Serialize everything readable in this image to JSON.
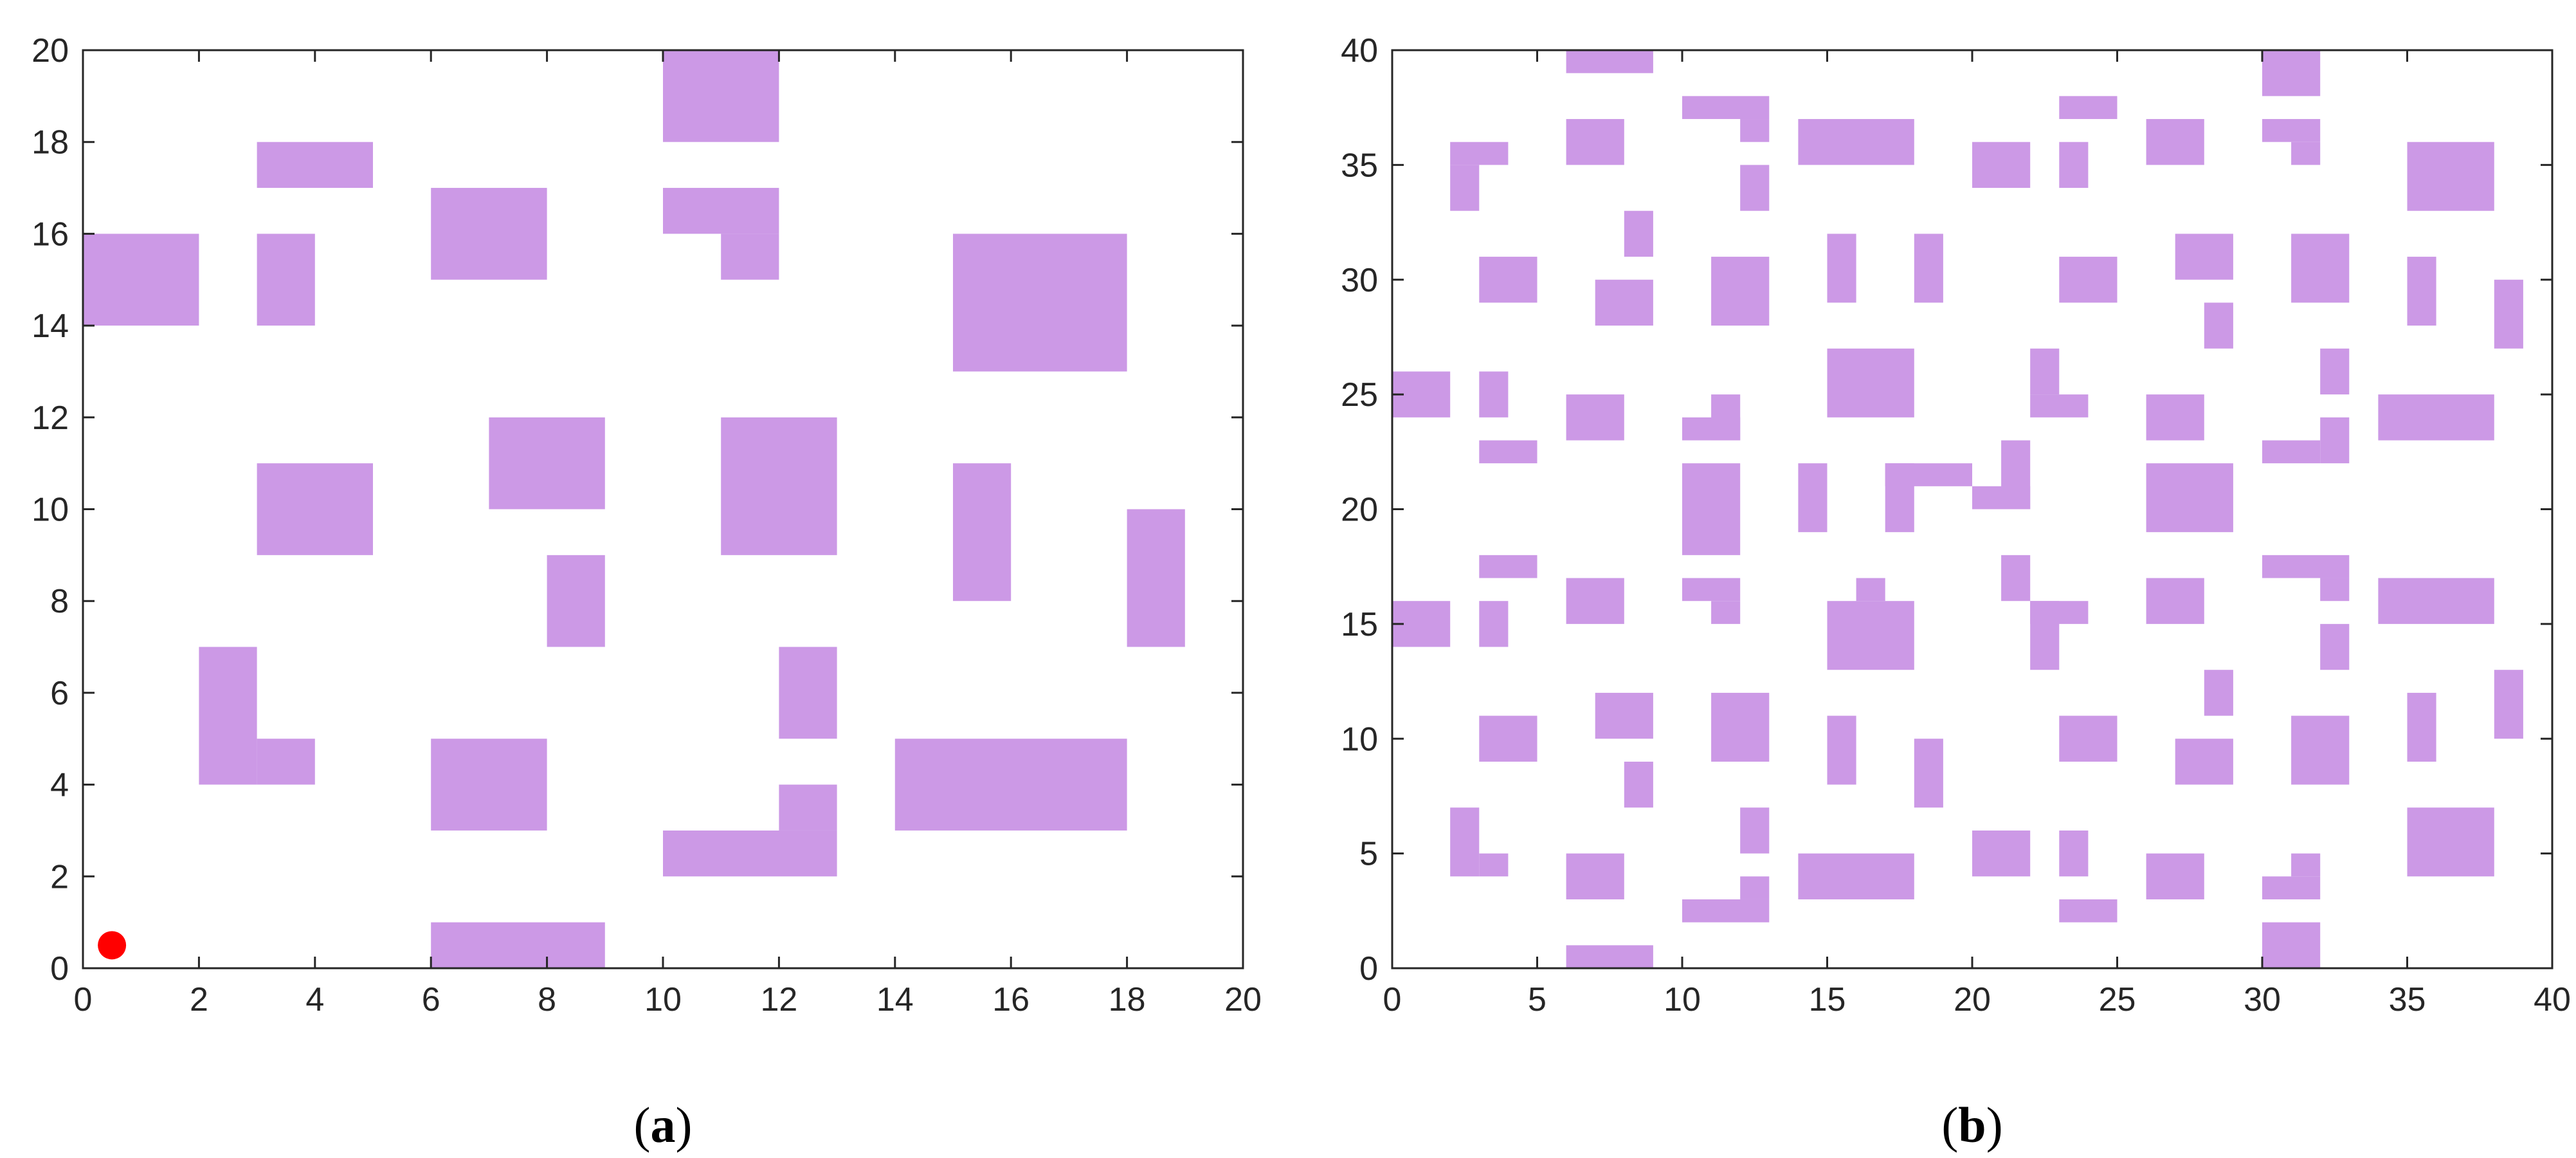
{
  "colors": {
    "obstacle": "#CC99E6",
    "start": "#FF0000",
    "axis": "#262626"
  },
  "panels": [
    {
      "id": "a",
      "caption": {
        "open": "(",
        "letter": "a",
        "close": ")"
      },
      "xlim": [
        0,
        20
      ],
      "ylim": [
        0,
        20
      ],
      "xticks": [
        0,
        2,
        4,
        6,
        8,
        10,
        12,
        14,
        16,
        18,
        20
      ],
      "yticks": [
        0,
        2,
        4,
        6,
        8,
        10,
        12,
        14,
        16,
        18,
        20
      ],
      "start": {
        "x": 0.5,
        "y": 0.5
      },
      "cells": [
        [
          10,
          18,
          12,
          20
        ],
        [
          3,
          17,
          5,
          18
        ],
        [
          0,
          14,
          2,
          16
        ],
        [
          3,
          14,
          4,
          16
        ],
        [
          6,
          15,
          8,
          17
        ],
        [
          10,
          16,
          12,
          17
        ],
        [
          11,
          15,
          12,
          16
        ],
        [
          15,
          13,
          18,
          16
        ],
        [
          7,
          10,
          9,
          12
        ],
        [
          11,
          9,
          13,
          12
        ],
        [
          3,
          9,
          5,
          11
        ],
        [
          15,
          8,
          16,
          11
        ],
        [
          18,
          7,
          19,
          10
        ],
        [
          8,
          7,
          9,
          9
        ],
        [
          2,
          4,
          3,
          7
        ],
        [
          3,
          4,
          4,
          5
        ],
        [
          12,
          5,
          13,
          7
        ],
        [
          6,
          3,
          8,
          5
        ],
        [
          14,
          3,
          18,
          5
        ],
        [
          10,
          2,
          13,
          3
        ],
        [
          12,
          3,
          13,
          4
        ],
        [
          6,
          0,
          9,
          1
        ]
      ]
    },
    {
      "id": "b",
      "caption": {
        "open": "(",
        "letter": "b",
        "close": ")"
      },
      "xlim": [
        0,
        40
      ],
      "ylim": [
        0,
        40
      ],
      "xticks": [
        0,
        5,
        10,
        15,
        20,
        25,
        30,
        35,
        40
      ],
      "yticks": [
        0,
        5,
        10,
        15,
        20,
        25,
        30,
        35,
        40
      ],
      "cells": [
        [
          6,
          39,
          9,
          40
        ],
        [
          30,
          38,
          32,
          40
        ],
        [
          10,
          37,
          13,
          38
        ],
        [
          12,
          36,
          13,
          37
        ],
        [
          23,
          37,
          25,
          38
        ],
        [
          30,
          36,
          32,
          37
        ],
        [
          31,
          35,
          32,
          36
        ],
        [
          2,
          35,
          4,
          36
        ],
        [
          2,
          33,
          3,
          35
        ],
        [
          6,
          35,
          8,
          37
        ],
        [
          14,
          35,
          18,
          37
        ],
        [
          20,
          34,
          22,
          36
        ],
        [
          23,
          34,
          24,
          36
        ],
        [
          26,
          35,
          28,
          37
        ],
        [
          35,
          33,
          38,
          36
        ],
        [
          12,
          33,
          13,
          35
        ],
        [
          8,
          31,
          9,
          33
        ],
        [
          18,
          29,
          19,
          32
        ],
        [
          15,
          29,
          16,
          32
        ],
        [
          11,
          28,
          13,
          31
        ],
        [
          3,
          29,
          5,
          31
        ],
        [
          7,
          28,
          9,
          30
        ],
        [
          23,
          29,
          25,
          31
        ],
        [
          27,
          30,
          29,
          32
        ],
        [
          31,
          29,
          33,
          32
        ],
        [
          35,
          28,
          36,
          31
        ],
        [
          38,
          27,
          39,
          30
        ],
        [
          28,
          27,
          29,
          29
        ],
        [
          0,
          24,
          2,
          26
        ],
        [
          3,
          24,
          4,
          26
        ],
        [
          6,
          23,
          8,
          25
        ],
        [
          11,
          23,
          12,
          25
        ],
        [
          10,
          23,
          12,
          24
        ],
        [
          15,
          24,
          18,
          27
        ],
        [
          22,
          25,
          23,
          27
        ],
        [
          22,
          24,
          24,
          25
        ],
        [
          26,
          23,
          28,
          25
        ],
        [
          32,
          25,
          33,
          27
        ],
        [
          32,
          22,
          33,
          24
        ],
        [
          30,
          22,
          32,
          23
        ],
        [
          34,
          23,
          38,
          25
        ],
        [
          3,
          22,
          5,
          23
        ],
        [
          10,
          18,
          12,
          22
        ],
        [
          14,
          19,
          15,
          22
        ],
        [
          17,
          19,
          18,
          22
        ],
        [
          17,
          21,
          20,
          22
        ],
        [
          21,
          20,
          22,
          23
        ],
        [
          20,
          20,
          22,
          21
        ],
        [
          26,
          19,
          29,
          22
        ],
        [
          3,
          17,
          5,
          18
        ],
        [
          0,
          14,
          2,
          16
        ],
        [
          3,
          14,
          4,
          16
        ],
        [
          6,
          15,
          8,
          17
        ],
        [
          10,
          16,
          12,
          17
        ],
        [
          11,
          15,
          12,
          16
        ],
        [
          15,
          13,
          18,
          16
        ],
        [
          16,
          16,
          17,
          17
        ],
        [
          21,
          16,
          22,
          18
        ],
        [
          22,
          13,
          23,
          16
        ],
        [
          22,
          15,
          24,
          16
        ],
        [
          26,
          15,
          28,
          17
        ],
        [
          30,
          17,
          33,
          18
        ],
        [
          32,
          16,
          33,
          17
        ],
        [
          34,
          15,
          38,
          17
        ],
        [
          32,
          13,
          33,
          15
        ],
        [
          28,
          11,
          29,
          13
        ],
        [
          7,
          10,
          9,
          12
        ],
        [
          11,
          9,
          13,
          12
        ],
        [
          3,
          9,
          5,
          11
        ],
        [
          15,
          8,
          16,
          11
        ],
        [
          18,
          7,
          19,
          10
        ],
        [
          8,
          7,
          9,
          9
        ],
        [
          23,
          9,
          25,
          11
        ],
        [
          27,
          8,
          29,
          10
        ],
        [
          31,
          8,
          33,
          11
        ],
        [
          35,
          9,
          36,
          12
        ],
        [
          38,
          10,
          39,
          13
        ],
        [
          2,
          4,
          3,
          7
        ],
        [
          3,
          4,
          4,
          5
        ],
        [
          12,
          5,
          13,
          7
        ],
        [
          6,
          3,
          8,
          5
        ],
        [
          14,
          3,
          18,
          5
        ],
        [
          10,
          2,
          13,
          3
        ],
        [
          12,
          3,
          13,
          4
        ],
        [
          20,
          4,
          22,
          6
        ],
        [
          23,
          4,
          24,
          6
        ],
        [
          23,
          2,
          25,
          3
        ],
        [
          26,
          3,
          28,
          5
        ],
        [
          30,
          3,
          32,
          4
        ],
        [
          31,
          4,
          32,
          5
        ],
        [
          30,
          0,
          32,
          2
        ],
        [
          35,
          4,
          38,
          7
        ],
        [
          6,
          0,
          9,
          1
        ]
      ]
    }
  ]
}
